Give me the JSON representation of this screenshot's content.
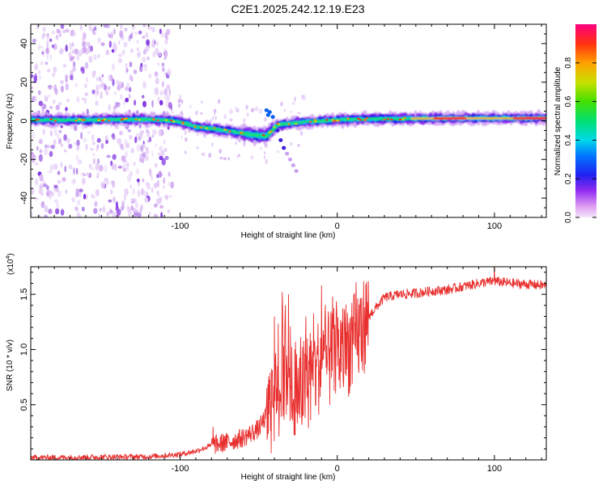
{
  "title": "C2E1.2025.242.12.19.E23",
  "chart_data": [
    {
      "type": "heatmap",
      "name": "spectrogram",
      "xlabel": "Height of straight line (km)",
      "ylabel": "Frequency (Hz)",
      "xlim": [
        -195,
        133
      ],
      "ylim": [
        -50,
        50
      ],
      "xticks": [
        -100,
        0,
        100
      ],
      "yticks": [
        -40,
        -20,
        0,
        20,
        40
      ],
      "track": [
        {
          "x": -195,
          "y": 0.5
        },
        {
          "x": -170,
          "y": 0.3
        },
        {
          "x": -150,
          "y": 0.6
        },
        {
          "x": -125,
          "y": 0.8
        },
        {
          "x": -110,
          "y": 0.5
        },
        {
          "x": -100,
          "y": -0.5
        },
        {
          "x": -90,
          "y": -3
        },
        {
          "x": -80,
          "y": -4
        },
        {
          "x": -70,
          "y": -5
        },
        {
          "x": -60,
          "y": -6.5
        },
        {
          "x": -50,
          "y": -7.5
        },
        {
          "x": -45,
          "y": -8
        },
        {
          "x": -38,
          "y": -2
        },
        {
          "x": -30,
          "y": -1.5
        },
        {
          "x": -20,
          "y": -0.5
        },
        {
          "x": 0,
          "y": 0.5
        },
        {
          "x": 20,
          "y": 1
        },
        {
          "x": 50,
          "y": 1.2
        },
        {
          "x": 80,
          "y": 1.3
        },
        {
          "x": 100,
          "y": 1.3
        },
        {
          "x": 133,
          "y": 1.4
        }
      ],
      "colorbar": {
        "label": "Normalized spectral amplitude",
        "ticks": [
          "0.0",
          "0.2",
          "0.4",
          "0.6",
          "0.8"
        ],
        "tick_values": [
          0,
          0.2,
          0.4,
          0.6,
          0.8
        ],
        "range": [
          0,
          1
        ]
      }
    },
    {
      "type": "line",
      "name": "snr",
      "xlabel": "Height of straight line (km)",
      "ylabel": "SNR (10 * v/v)",
      "scale_label": "(x10",
      "scale_exp": "4",
      "scale_close": ")",
      "xlim": [
        -195,
        133
      ],
      "ylim": [
        0,
        1.75
      ],
      "xticks": [
        -100,
        0,
        100
      ],
      "yticks": [
        0.5,
        1.0,
        1.5
      ],
      "ytick_labels": [
        "0.5",
        "1.0",
        "1.5"
      ],
      "color": "#e8302f",
      "envelope": [
        {
          "x": -195,
          "y": 0.02
        },
        {
          "x": -120,
          "y": 0.03
        },
        {
          "x": -100,
          "y": 0.05
        },
        {
          "x": -90,
          "y": 0.08
        },
        {
          "x": -80,
          "y": 0.13
        },
        {
          "x": -70,
          "y": 0.16
        },
        {
          "x": -60,
          "y": 0.2
        },
        {
          "x": -50,
          "y": 0.28
        },
        {
          "x": -45,
          "y": 0.4
        },
        {
          "x": -40,
          "y": 0.55
        },
        {
          "x": -35,
          "y": 0.7
        },
        {
          "x": -30,
          "y": 0.65
        },
        {
          "x": -25,
          "y": 0.6
        },
        {
          "x": -20,
          "y": 0.68
        },
        {
          "x": -15,
          "y": 0.8
        },
        {
          "x": -10,
          "y": 0.88
        },
        {
          "x": -5,
          "y": 0.9
        },
        {
          "x": 0,
          "y": 0.95
        },
        {
          "x": 10,
          "y": 1.05
        },
        {
          "x": 20,
          "y": 1.3
        },
        {
          "x": 30,
          "y": 1.47
        },
        {
          "x": 40,
          "y": 1.5
        },
        {
          "x": 50,
          "y": 1.51
        },
        {
          "x": 60,
          "y": 1.53
        },
        {
          "x": 70,
          "y": 1.54
        },
        {
          "x": 80,
          "y": 1.57
        },
        {
          "x": 90,
          "y": 1.6
        },
        {
          "x": 100,
          "y": 1.62
        },
        {
          "x": 110,
          "y": 1.6
        },
        {
          "x": 133,
          "y": 1.58
        }
      ],
      "spikes": [
        {
          "x": -79,
          "y": 0.3
        },
        {
          "x": -72,
          "y": 0.22
        },
        {
          "x": -40,
          "y": 1.3
        },
        {
          "x": -35,
          "y": 1.52
        },
        {
          "x": -33,
          "y": 1.4
        },
        {
          "x": -31,
          "y": 1.5
        },
        {
          "x": -27,
          "y": 1.0
        },
        {
          "x": -20,
          "y": 1.3
        },
        {
          "x": -10,
          "y": 1.58
        },
        {
          "x": -3,
          "y": 1.48
        },
        {
          "x": 3,
          "y": 1.25
        },
        {
          "x": 12,
          "y": 1.61
        },
        {
          "x": 100,
          "y": 1.78
        }
      ]
    }
  ]
}
